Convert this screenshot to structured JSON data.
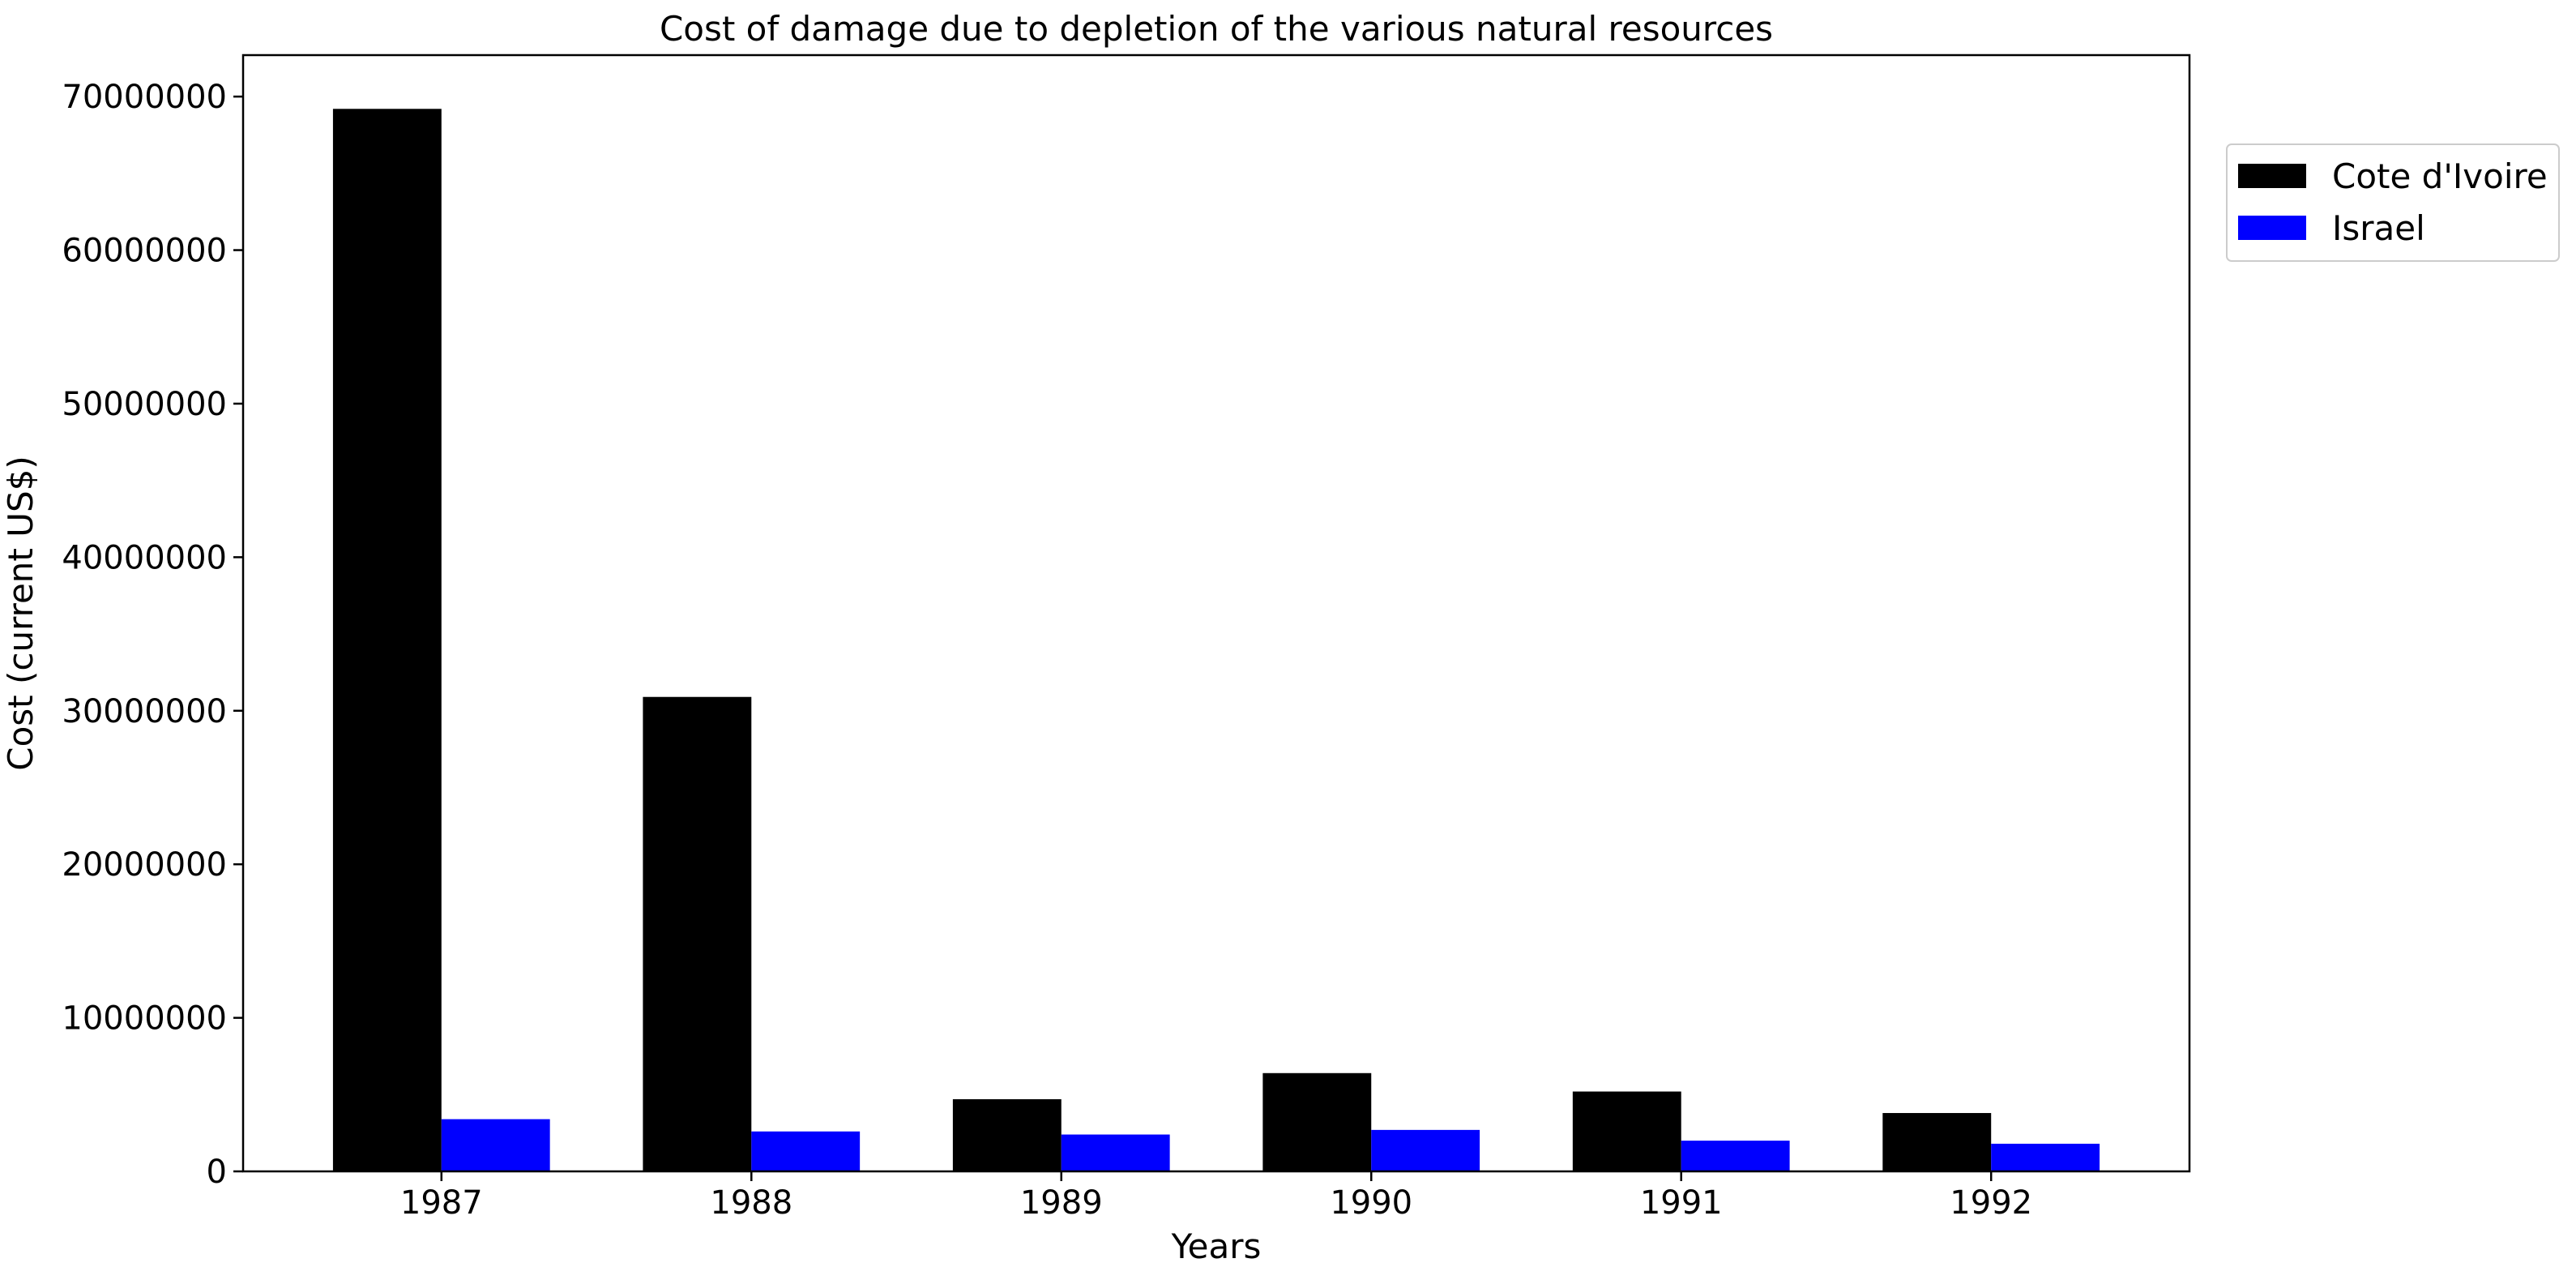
{
  "chart_data": {
    "type": "bar",
    "title": "Cost of damage due to depletion of the various natural resources",
    "xlabel": "Years",
    "ylabel": "Cost (current US$)",
    "categories": [
      "1987",
      "1988",
      "1989",
      "1990",
      "1991",
      "1992"
    ],
    "series": [
      {
        "name": "Cote d'Ivoire",
        "color": "#000000",
        "values": [
          69200000,
          30900000,
          4700000,
          6400000,
          5200000,
          3800000
        ]
      },
      {
        "name": "Israel",
        "color": "#0000ff",
        "values": [
          3400000,
          2600000,
          2400000,
          2700000,
          2000000,
          1800000
        ]
      }
    ],
    "ylim": [
      0,
      72700000
    ],
    "yticks": [
      0,
      10000000,
      20000000,
      30000000,
      40000000,
      50000000,
      60000000,
      70000000
    ],
    "ytick_labels": [
      "0",
      "10000000",
      "20000000",
      "30000000",
      "40000000",
      "50000000",
      "60000000",
      "70000000"
    ],
    "grid": false,
    "legend_position": "outside-top-right"
  }
}
